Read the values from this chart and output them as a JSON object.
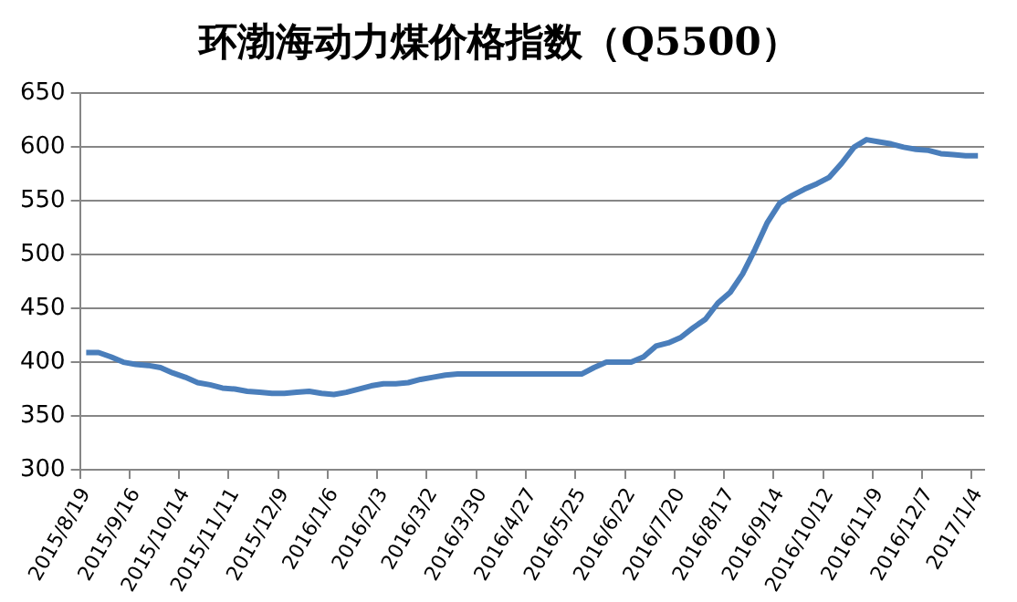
{
  "chart_data": {
    "type": "line",
    "title": "环渤海动力煤价格指数（Q5500）",
    "categories": [
      "2015/8/19",
      null,
      null,
      null,
      "2015/9/16",
      null,
      null,
      null,
      "2015/10/14",
      null,
      null,
      null,
      "2015/11/11",
      null,
      null,
      null,
      "2015/12/9",
      null,
      null,
      null,
      "2016/1/6",
      null,
      null,
      null,
      "2016/2/3",
      null,
      null,
      null,
      "2016/3/2",
      null,
      null,
      null,
      "2016/3/30",
      null,
      null,
      null,
      "2016/4/27",
      null,
      null,
      null,
      "2016/5/25",
      null,
      null,
      null,
      "2016/6/22",
      null,
      null,
      null,
      "2016/7/20",
      null,
      null,
      null,
      "2016/8/17",
      null,
      null,
      null,
      "2016/9/14",
      null,
      null,
      null,
      "2016/10/12",
      null,
      null,
      null,
      "2016/11/9",
      null,
      null,
      null,
      "2016/12/7",
      null,
      null,
      null,
      "2017/1/4"
    ],
    "series": [
      {
        "color": "#4a7ebb",
        "values": [
          409,
          409,
          405,
          400,
          398,
          397,
          395,
          390,
          386,
          381,
          379,
          376,
          375,
          373,
          372,
          371,
          371,
          372,
          373,
          371,
          370,
          372,
          375,
          378,
          380,
          380,
          381,
          384,
          386,
          388,
          389,
          389,
          389,
          389,
          389,
          389,
          389,
          389,
          389,
          389,
          389,
          395,
          400,
          400,
          400,
          405,
          415,
          418,
          423,
          432,
          440,
          455,
          465,
          482,
          505,
          530,
          548,
          555,
          561,
          566,
          572,
          585,
          600,
          607,
          605,
          603,
          600,
          598,
          597,
          594,
          593,
          592,
          592
        ]
      }
    ],
    "ylim": [
      300,
      650
    ],
    "yticks": [
      300,
      350,
      400,
      450,
      500,
      550,
      600,
      650
    ],
    "grid": "y",
    "legend": false,
    "marker": "none",
    "line_style": "solid"
  }
}
